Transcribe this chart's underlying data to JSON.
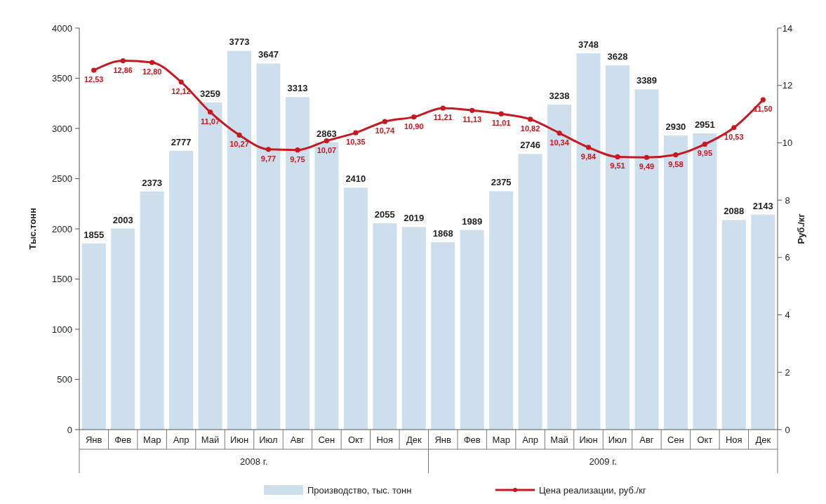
{
  "chart_data": {
    "type": "bar",
    "categories": [
      "Янв",
      "Фев",
      "Мар",
      "Апр",
      "Май",
      "Июн",
      "Июл",
      "Авг",
      "Сен",
      "Окт",
      "Ноя",
      "Дек",
      "Янв",
      "Фев",
      "Мар",
      "Апр",
      "Май",
      "Июн",
      "Июл",
      "Авг",
      "Сен",
      "Окт",
      "Ноя",
      "Дек"
    ],
    "ylabel": "Тыс.тонн",
    "y2label": "Руб./кг",
    "ylim": [
      0,
      4000
    ],
    "yticks": [
      0,
      500,
      1000,
      1500,
      2000,
      2500,
      3000,
      3500,
      4000
    ],
    "y2lim": [
      0,
      14
    ],
    "y2ticks": [
      0,
      2,
      4,
      6,
      8,
      10,
      12,
      14
    ],
    "annotations": [
      "2008 г.",
      "2009 г."
    ],
    "legend": "bottom",
    "marker": "circle",
    "line_style": "solid",
    "grid": false,
    "series": [
      {
        "name": "Производство, тыс. тонн",
        "color": "#cddfec",
        "values": [
          1855,
          2003,
          2373,
          2777,
          3259,
          3773,
          3647,
          3313,
          2863,
          2410,
          2055,
          2019,
          1868,
          1989,
          2375,
          2746,
          3238,
          3748,
          3628,
          3389,
          2930,
          2951,
          2088,
          2143
        ],
        "value_labels": [
          "1855",
          "2003",
          "2373",
          "2777",
          "3259",
          "3773",
          "3647",
          "3313",
          "2863",
          "2410",
          "2055",
          "2019",
          "1868",
          "1989",
          "2375",
          "2746",
          "3238",
          "3748",
          "3628",
          "3389",
          "2930",
          "2951",
          "2088",
          "2143"
        ]
      },
      {
        "name": "Цена реализации, руб./кг",
        "type": "line",
        "axis": "y2",
        "color": "#c8171e",
        "values": [
          12.53,
          12.86,
          12.8,
          12.12,
          11.07,
          10.27,
          9.77,
          9.75,
          10.07,
          10.35,
          10.74,
          10.9,
          11.21,
          11.13,
          11.01,
          10.82,
          10.34,
          9.84,
          9.51,
          9.49,
          9.58,
          9.95,
          10.53,
          11.5
        ],
        "value_labels": [
          "12,53",
          "12,86",
          "12,80",
          "12,12",
          "11,07",
          "10,27",
          "9,77",
          "9,75",
          "10,07",
          "10,35",
          "10,74",
          "10,90",
          "11,21",
          "11,13",
          "11,01",
          "10,82",
          "10,34",
          "9,84",
          "9,51",
          "9,49",
          "9,58",
          "9,95",
          "10,53",
          "11,50"
        ]
      }
    ]
  }
}
